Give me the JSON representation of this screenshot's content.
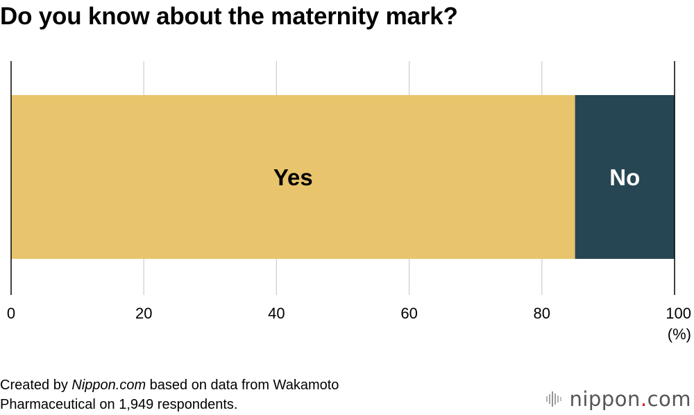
{
  "title": "Do you know about the maternity mark?",
  "chart_data": {
    "type": "bar",
    "orientation": "horizontal-stacked",
    "series": [
      {
        "name": "Yes",
        "value": 85,
        "color": "#E8C46C"
      },
      {
        "name": "No",
        "value": 15,
        "color": "#264653"
      }
    ],
    "xlim": [
      0,
      100
    ],
    "xticks": [
      0,
      20,
      40,
      60,
      80,
      100
    ],
    "xunit": "(%)",
    "grid": true,
    "label_colors": {
      "Yes": "#000000",
      "No": "#ffffff"
    }
  },
  "caption": {
    "prefix": "Created by ",
    "source": "Nippon.com",
    "rest": " based on data from Wakamoto",
    "line2": "Pharmaceutical on 1,949 respondents."
  },
  "logo": {
    "name": "nippon.com",
    "dot_color": "#E4002B"
  }
}
